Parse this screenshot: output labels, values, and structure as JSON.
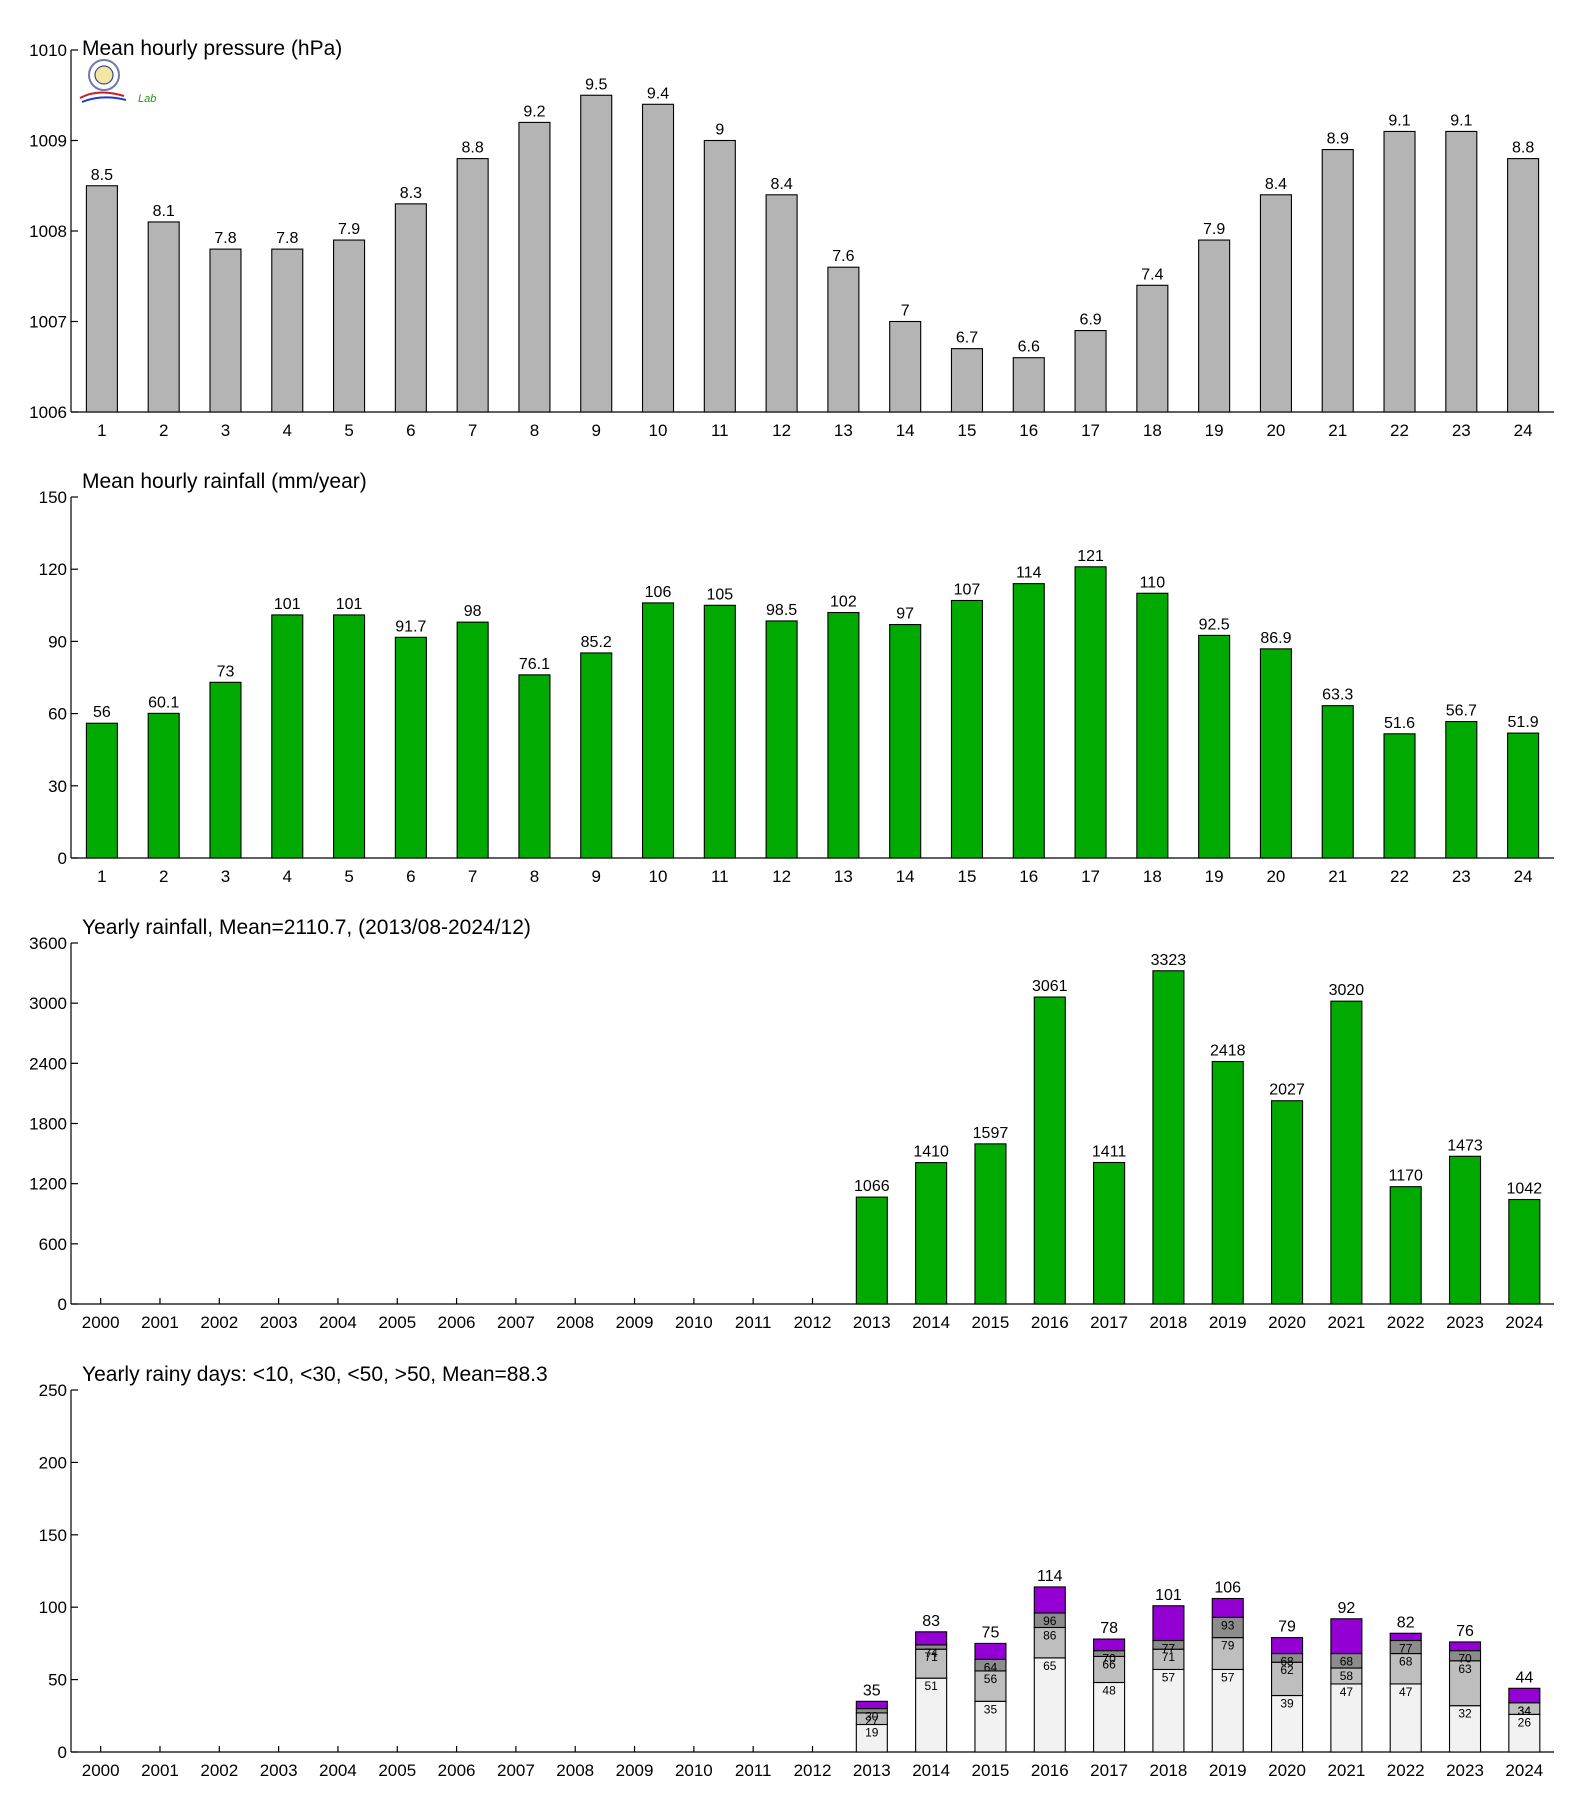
{
  "logo": {
    "text": "Lab"
  },
  "chart_data": [
    {
      "type": "bar",
      "title": "Mean hourly pressure (hPa)",
      "categories": [
        "1",
        "2",
        "3",
        "4",
        "5",
        "6",
        "7",
        "8",
        "9",
        "10",
        "11",
        "12",
        "13",
        "14",
        "15",
        "16",
        "17",
        "18",
        "19",
        "20",
        "21",
        "22",
        "23",
        "24"
      ],
      "values": [
        1008.5,
        1008.1,
        1007.8,
        1007.8,
        1007.9,
        1008.3,
        1008.8,
        1009.2,
        1009.5,
        1009.4,
        1009.0,
        1008.4,
        1007.6,
        1007.0,
        1006.7,
        1006.6,
        1006.9,
        1007.4,
        1007.9,
        1008.4,
        1008.9,
        1009.1,
        1009.1,
        1008.8
      ],
      "labels": [
        "8.5",
        "8.1",
        "7.8",
        "7.8",
        "7.9",
        "8.3",
        "8.8",
        "9.2",
        "9.5",
        "9.4",
        "9",
        "8.4",
        "7.6",
        "7",
        "6.7",
        "6.6",
        "6.9",
        "7.4",
        "7.9",
        "8.4",
        "8.9",
        "9.1",
        "9.1",
        "8.8"
      ],
      "ylim": [
        1006,
        1010
      ],
      "yticks": [
        "1006",
        "1007",
        "1008",
        "1009",
        "1010"
      ],
      "color": "#b4b4b4"
    },
    {
      "type": "bar",
      "title": "Mean hourly rainfall (mm/year)",
      "categories": [
        "1",
        "2",
        "3",
        "4",
        "5",
        "6",
        "7",
        "8",
        "9",
        "10",
        "11",
        "12",
        "13",
        "14",
        "15",
        "16",
        "17",
        "18",
        "19",
        "20",
        "21",
        "22",
        "23",
        "24"
      ],
      "values": [
        56,
        60.1,
        73,
        101,
        101,
        91.7,
        98,
        76.1,
        85.2,
        106,
        105,
        98.5,
        102,
        97,
        107,
        114,
        121,
        110,
        92.5,
        86.9,
        63.3,
        51.6,
        56.7,
        51.9
      ],
      "labels": [
        "56",
        "60.1",
        "73",
        "101",
        "101",
        "91.7",
        "98",
        "76.1",
        "85.2",
        "106",
        "105",
        "98.5",
        "102",
        "97",
        "107",
        "114",
        "121",
        "110",
        "92.5",
        "86.9",
        "63.3",
        "51.6",
        "56.7",
        "51.9"
      ],
      "ylim": [
        0,
        150
      ],
      "yticks": [
        "0",
        "30",
        "60",
        "90",
        "120",
        "150"
      ],
      "color": "#00aa00"
    },
    {
      "type": "bar",
      "title": "Yearly rainfall, Mean=2110.7, (2013/08-2024/12)",
      "categories": [
        "2000",
        "2001",
        "2002",
        "2003",
        "2004",
        "2005",
        "2006",
        "2007",
        "2008",
        "2009",
        "2010",
        "2011",
        "2012",
        "2013",
        "2014",
        "2015",
        "2016",
        "2017",
        "2018",
        "2019",
        "2020",
        "2021",
        "2022",
        "2023",
        "2024"
      ],
      "values": [
        null,
        null,
        null,
        null,
        null,
        null,
        null,
        null,
        null,
        null,
        null,
        null,
        null,
        1066,
        1410,
        1597,
        3061,
        1411,
        3323,
        2418,
        2027,
        3020,
        1170,
        1473,
        1042
      ],
      "labels": [
        "",
        "",
        "",
        "",
        "",
        "",
        "",
        "",
        "",
        "",
        "",
        "",
        "",
        "1066",
        "1410",
        "1597",
        "3061",
        "1411",
        "3323",
        "2418",
        "2027",
        "3020",
        "1170",
        "1473",
        "1042"
      ],
      "ylim": [
        0,
        3600
      ],
      "yticks": [
        "0",
        "600",
        "1200",
        "1800",
        "2400",
        "3000",
        "3600"
      ],
      "color": "#00aa00"
    },
    {
      "type": "bar",
      "stacked": true,
      "title": "Yearly rainy days: <10, <30, <50, >50, Mean=88.3",
      "categories": [
        "2000",
        "2001",
        "2002",
        "2003",
        "2004",
        "2005",
        "2006",
        "2007",
        "2008",
        "2009",
        "2010",
        "2011",
        "2012",
        "2013",
        "2014",
        "2015",
        "2016",
        "2017",
        "2018",
        "2019",
        "2020",
        "2021",
        "2022",
        "2023",
        "2024"
      ],
      "ylim": [
        0,
        250
      ],
      "yticks": [
        "0",
        "50",
        "100",
        "150",
        "200",
        "250"
      ],
      "colors": [
        "#f2f2f2",
        "#bebebe",
        "#8c8c8c",
        "#9400d3"
      ],
      "cumulative": [
        null,
        null,
        null,
        null,
        null,
        null,
        null,
        null,
        null,
        null,
        null,
        null,
        null,
        [
          19,
          27,
          30,
          35
        ],
        [
          51,
          71,
          74,
          83
        ],
        [
          35,
          56,
          64,
          75
        ],
        [
          65,
          86,
          96,
          114
        ],
        [
          48,
          66,
          70,
          78
        ],
        [
          57,
          71,
          77,
          101
        ],
        [
          57,
          79,
          93,
          106
        ],
        [
          39,
          62,
          68,
          79
        ],
        [
          47,
          58,
          68,
          92
        ],
        [
          47,
          68,
          77,
          82
        ],
        [
          32,
          63,
          70,
          76
        ],
        [
          26,
          34,
          34,
          44
        ]
      ],
      "inner_labels": [
        null,
        null,
        null,
        null,
        null,
        null,
        null,
        null,
        null,
        null,
        null,
        null,
        null,
        [
          "19",
          "27",
          "30"
        ],
        [
          "51",
          "71",
          "74"
        ],
        [
          "35",
          "56",
          "64"
        ],
        [
          "65",
          "86",
          "96"
        ],
        [
          "48",
          "66",
          "70"
        ],
        [
          "57",
          "71",
          "77"
        ],
        [
          "57",
          "79",
          "93"
        ],
        [
          "39",
          "62",
          "68"
        ],
        [
          "47",
          "58",
          "68"
        ],
        [
          "47",
          "68",
          "77"
        ],
        [
          "32",
          "63",
          "70"
        ],
        [
          "26",
          "34",
          "34"
        ]
      ],
      "total_labels": [
        "",
        "",
        "",
        "",
        "",
        "",
        "",
        "",
        "",
        "",
        "",
        "",
        "",
        "35",
        "83",
        "75",
        "114",
        "78",
        "101",
        "106",
        "79",
        "92",
        "82",
        "76",
        "44"
      ]
    }
  ]
}
